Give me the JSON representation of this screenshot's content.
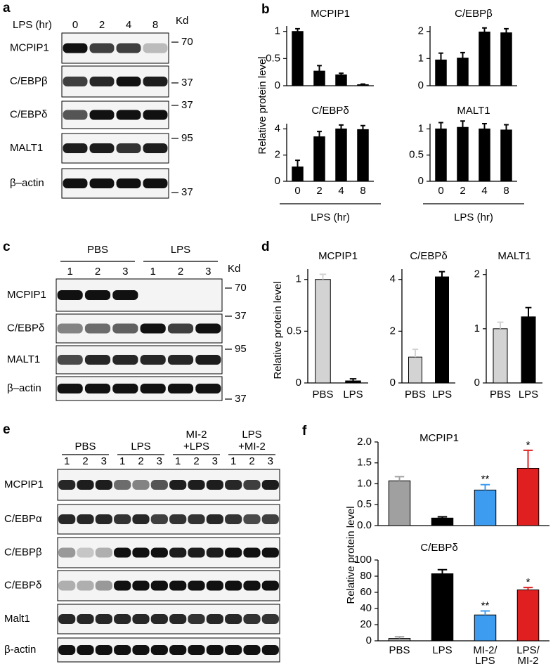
{
  "panel_labels": [
    "a",
    "b",
    "c",
    "d",
    "e",
    "f"
  ],
  "blot_a": {
    "treatment_label": "LPS (hr)",
    "lanes": [
      "0",
      "2",
      "4",
      "8"
    ],
    "kd_header": "Kd",
    "rows": [
      {
        "label": "MCPIP1",
        "kd": "70"
      },
      {
        "label": "C/EBPβ",
        "kd": "37"
      },
      {
        "label": "C/EBPδ",
        "kd": "37"
      },
      {
        "label": "MALT1",
        "kd": "95"
      },
      {
        "label": "β–actin",
        "kd": "37"
      }
    ]
  },
  "blot_c": {
    "groups": [
      [
        "PBS"
      ],
      [
        "LPS"
      ]
    ],
    "lanes": [
      "1",
      "2",
      "3",
      "1",
      "2",
      "3"
    ],
    "kd_header": "Kd",
    "rows": [
      {
        "label": "MCPIP1",
        "kd": "70"
      },
      {
        "label": "C/EBPδ",
        "kd": "37"
      },
      {
        "label": "MALT1",
        "kd": "95"
      },
      {
        "label": "β–actin",
        "kd": "37"
      }
    ]
  },
  "blot_e": {
    "groups": [
      [
        "PBS"
      ],
      [
        "LPS"
      ],
      [
        "MI-2",
        "+LPS"
      ],
      [
        "LPS",
        "+MI-2"
      ]
    ],
    "lanes": [
      "1",
      "2",
      "3",
      "1",
      "2",
      "3",
      "1",
      "2",
      "3",
      "1",
      "2",
      "3"
    ],
    "rows": [
      {
        "label": "MCPIP1"
      },
      {
        "label": "C/EBPα"
      },
      {
        "label": "C/EBPβ"
      },
      {
        "label": "C/EBPδ"
      },
      {
        "label": "Malt1"
      },
      {
        "label": "β-actin"
      }
    ]
  },
  "chart_data": [
    {
      "type": "bar",
      "title": "MCPIP1",
      "y_label": "Relative protein level",
      "categories": [
        null,
        null,
        null,
        null
      ],
      "values": [
        1.0,
        0.27,
        0.2,
        0.02
      ],
      "errors": [
        0.05,
        0.1,
        0.03,
        0.01
      ],
      "colors": [
        "#000000",
        "#000000",
        "#000000",
        "#000000"
      ],
      "ylim": [
        0,
        1.1
      ],
      "yticks": [
        0,
        0.5,
        1
      ]
    },
    {
      "type": "bar",
      "title": "C/EBPβ",
      "categories": [
        null,
        null,
        null,
        null
      ],
      "values": [
        0.95,
        1.02,
        1.98,
        1.95
      ],
      "errors": [
        0.25,
        0.2,
        0.15,
        0.15
      ],
      "colors": [
        "#000000",
        "#000000",
        "#000000",
        "#000000"
      ],
      "ylim": [
        0,
        2.2
      ],
      "yticks": [
        0,
        1,
        2
      ]
    },
    {
      "type": "bar",
      "title": "C/EBPδ",
      "x_label": "LPS (hr)",
      "categories": [
        "0",
        "2",
        "4",
        "8"
      ],
      "values": [
        1.1,
        3.4,
        4.0,
        3.95
      ],
      "errors": [
        0.5,
        0.4,
        0.3,
        0.3
      ],
      "colors": [
        "#000000",
        "#000000",
        "#000000",
        "#000000"
      ],
      "ylim": [
        0,
        4.4
      ],
      "yticks": [
        0,
        2,
        4
      ]
    },
    {
      "type": "bar",
      "title": "MALT1",
      "x_label": "LPS (hr)",
      "categories": [
        "0",
        "2",
        "4",
        "8"
      ],
      "values": [
        1.0,
        1.03,
        1.0,
        0.98
      ],
      "errors": [
        0.12,
        0.12,
        0.1,
        0.1
      ],
      "colors": [
        "#000000",
        "#000000",
        "#000000",
        "#000000"
      ],
      "ylim": [
        0,
        1.1
      ],
      "yticks": [
        0,
        0.5,
        1
      ]
    },
    {
      "type": "bar",
      "title": "MCPIP1",
      "y_label": "Relative protein level",
      "categories": [
        "PBS",
        "LPS"
      ],
      "values": [
        1.0,
        0.02
      ],
      "errors": [
        0.05,
        0.02
      ],
      "colors": [
        "#d3d3d3",
        "#000000"
      ],
      "ylim": [
        0,
        1.1
      ],
      "yticks": [
        0,
        0.5,
        1
      ]
    },
    {
      "type": "bar",
      "title": "C/EBPδ",
      "categories": [
        "PBS",
        "LPS"
      ],
      "values": [
        1.0,
        4.1
      ],
      "errors": [
        0.3,
        0.2
      ],
      "colors": [
        "#d3d3d3",
        "#000000"
      ],
      "ylim": [
        0,
        4.4
      ],
      "yticks": [
        0,
        2,
        4
      ]
    },
    {
      "type": "bar",
      "title": "MALT1",
      "categories": [
        "PBS",
        "LPS"
      ],
      "values": [
        1.0,
        1.22
      ],
      "errors": [
        0.12,
        0.17
      ],
      "colors": [
        "#d3d3d3",
        "#000000"
      ],
      "ylim": [
        0,
        2.1
      ],
      "yticks": [
        0,
        1,
        2
      ]
    },
    {
      "type": "bar",
      "title": "MCPIP1",
      "y_label": "Relative protein level",
      "categories": [
        null,
        null,
        null,
        null
      ],
      "values": [
        1.07,
        0.18,
        0.85,
        1.37
      ],
      "errors": [
        0.1,
        0.03,
        0.13,
        0.43
      ],
      "significance": [
        null,
        null,
        "**",
        "*"
      ],
      "colors": [
        "#a0a0a0",
        "#000000",
        "#3d9bf0",
        "#e02020"
      ],
      "ylim": [
        0,
        2
      ],
      "yticks": [
        {
          "value": 0,
          "label": "0.0"
        },
        {
          "value": 0.5,
          "label": "0.5"
        },
        {
          "value": 1,
          "label": "1.0"
        },
        {
          "value": 1.5,
          "label": "1.5"
        },
        {
          "value": 2,
          "label": "2.0"
        }
      ]
    },
    {
      "type": "bar",
      "title": "C/EBPδ",
      "categories": [
        [
          "PBS"
        ],
        [
          "LPS"
        ],
        [
          "MI-2/",
          "LPS"
        ],
        [
          "LPS/",
          "MI-2"
        ]
      ],
      "values": [
        3,
        83,
        32,
        63
      ],
      "errors": [
        2,
        5,
        5,
        3
      ],
      "significance": [
        null,
        null,
        "**",
        "*"
      ],
      "colors": [
        "#a0a0a0",
        "#000000",
        "#3d9bf0",
        "#e02020"
      ],
      "ylim": [
        0,
        100
      ],
      "yticks": [
        0,
        20,
        40,
        60,
        80,
        100
      ]
    }
  ]
}
